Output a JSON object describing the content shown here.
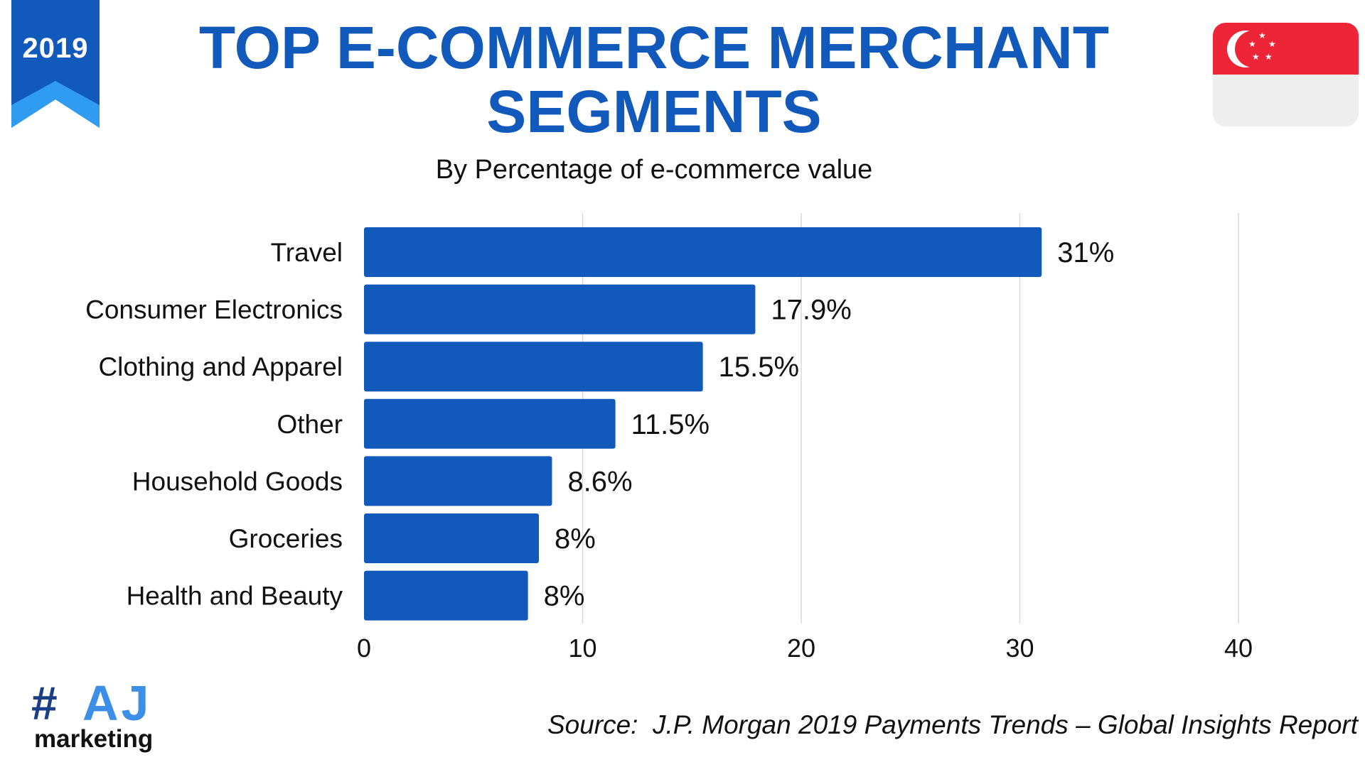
{
  "badge": {
    "year": "2019"
  },
  "header": {
    "title_line1": "TOP E-COMMERCE MERCHANT",
    "title_line2": "SEGMENTS",
    "subtitle": "By Percentage of e-commerce value"
  },
  "flag": {
    "icon": "singapore-flag-icon",
    "top_color": "#ee2536",
    "bottom_color": "#eeeeee"
  },
  "colors": {
    "bar": "#1159bb",
    "title": "#1159bb",
    "ribbon": "#1159bb",
    "ribbon_chevron": "#2f9cf2",
    "grid": "#d9d9d9"
  },
  "chart_data": {
    "type": "bar",
    "orientation": "horizontal",
    "categories": [
      "Travel",
      "Consumer Electronics",
      "Clothing and Apparel",
      "Other",
      "Household Goods",
      "Groceries",
      "Health and Beauty"
    ],
    "values": [
      31,
      17.9,
      15.5,
      11.5,
      8.6,
      8,
      8
    ],
    "value_labels": [
      "31%",
      "17.9%",
      "15.5%",
      "11.5%",
      "8.6%",
      "8%",
      "8%"
    ],
    "bar_values_estimated": [
      31,
      17.9,
      15.5,
      11.5,
      8.6,
      8.0,
      7.5
    ],
    "xticks": [
      "0",
      "10",
      "20",
      "30",
      "40"
    ],
    "xlim": [
      0,
      40
    ],
    "grid": true,
    "legend": "none"
  },
  "footer": {
    "source": "Source:  J.P. Morgan 2019 Payments Trends – Global Insights Report",
    "logo_hash": "#",
    "logo_letters": "AJ",
    "logo_sub": "marketing"
  }
}
